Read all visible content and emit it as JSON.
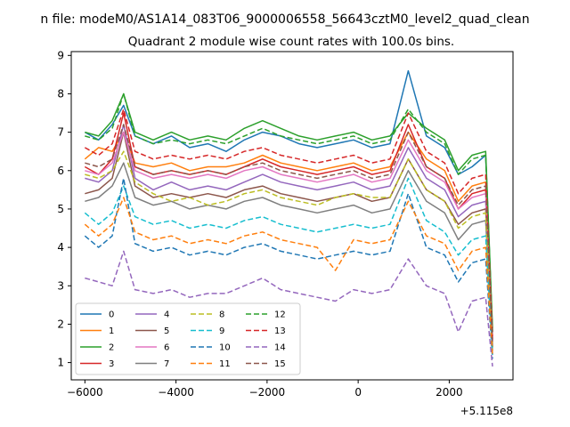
{
  "figure": {
    "suptitle": "n file: modeM0/AS1A14_083T06_9000006558_56643cztM0_level2_quad_clean",
    "offset_text": "+5.115e8"
  },
  "chart_data": {
    "type": "line",
    "title": "Quadrant 2 module wise count rates with 100.0s bins.",
    "xlabel": "",
    "ylabel": "",
    "xlim": [
      -6300,
      3400
    ],
    "ylim": [
      0.55,
      9.1
    ],
    "x_ticks": [
      -6000,
      -4000,
      -2000,
      0,
      2000
    ],
    "x_tick_labels": [
      "−6000",
      "−4000",
      "−2000",
      "0",
      "2000"
    ],
    "y_ticks": [
      1,
      2,
      3,
      4,
      5,
      6,
      7,
      8,
      9
    ],
    "y_tick_labels": [
      "1",
      "2",
      "3",
      "4",
      "5",
      "6",
      "7",
      "8",
      "9"
    ],
    "grid": false,
    "legend": {
      "placement": "lower-left",
      "columns": 4
    },
    "x": [
      -6000,
      -5700,
      -5400,
      -5150,
      -4900,
      -4500,
      -4100,
      -3700,
      -3300,
      -2900,
      -2500,
      -2100,
      -1700,
      -1300,
      -900,
      -500,
      -100,
      300,
      700,
      1100,
      1500,
      1900,
      2200,
      2500,
      2800,
      2950
    ],
    "series": [
      {
        "name": "0",
        "color": "#1f77b4",
        "dash": "",
        "values": [
          7.0,
          6.8,
          7.2,
          7.7,
          6.9,
          6.7,
          6.9,
          6.6,
          6.7,
          6.5,
          6.8,
          7.0,
          6.9,
          6.7,
          6.6,
          6.7,
          6.8,
          6.6,
          6.7,
          8.6,
          6.9,
          6.6,
          5.9,
          6.1,
          6.4,
          1.8
        ]
      },
      {
        "name": "1",
        "color": "#ff7f0e",
        "dash": "",
        "values": [
          6.3,
          6.6,
          6.5,
          7.0,
          6.2,
          6.1,
          6.2,
          6.0,
          6.1,
          6.1,
          6.2,
          6.4,
          6.2,
          6.1,
          6.0,
          6.1,
          6.2,
          6.0,
          6.1,
          7.0,
          6.3,
          6.0,
          5.2,
          5.6,
          5.7,
          1.4
        ]
      },
      {
        "name": "2",
        "color": "#2ca02c",
        "dash": "",
        "values": [
          7.0,
          6.9,
          7.3,
          8.0,
          7.0,
          6.8,
          7.0,
          6.8,
          6.9,
          6.8,
          7.1,
          7.3,
          7.1,
          6.9,
          6.8,
          6.9,
          7.0,
          6.8,
          6.9,
          7.5,
          7.1,
          6.8,
          6.0,
          6.4,
          6.5,
          1.9
        ]
      },
      {
        "name": "3",
        "color": "#d62728",
        "dash": "",
        "values": [
          6.1,
          5.9,
          6.3,
          7.5,
          6.1,
          5.9,
          6.0,
          5.9,
          6.0,
          5.9,
          6.1,
          6.3,
          6.1,
          6.0,
          5.9,
          6.0,
          6.1,
          5.9,
          6.0,
          7.2,
          6.1,
          5.8,
          5.0,
          5.4,
          5.5,
          1.7
        ]
      },
      {
        "name": "4",
        "color": "#9467bd",
        "dash": "",
        "values": [
          5.8,
          5.7,
          6.0,
          7.2,
          5.8,
          5.5,
          5.7,
          5.5,
          5.6,
          5.5,
          5.7,
          5.9,
          5.7,
          5.6,
          5.5,
          5.6,
          5.7,
          5.5,
          5.6,
          6.6,
          5.8,
          5.5,
          4.8,
          5.1,
          5.2,
          1.5
        ]
      },
      {
        "name": "5",
        "color": "#8c564b",
        "dash": "",
        "values": [
          5.4,
          5.5,
          5.8,
          7.0,
          5.6,
          5.3,
          5.4,
          5.3,
          5.4,
          5.3,
          5.5,
          5.6,
          5.4,
          5.3,
          5.2,
          5.3,
          5.4,
          5.2,
          5.3,
          6.3,
          5.5,
          5.2,
          4.6,
          4.9,
          5.0,
          1.4
        ]
      },
      {
        "name": "6",
        "color": "#e377c2",
        "dash": "",
        "values": [
          6.0,
          5.9,
          6.2,
          7.0,
          6.0,
          5.8,
          5.9,
          5.8,
          5.9,
          5.8,
          6.0,
          6.1,
          5.9,
          5.8,
          5.7,
          5.8,
          5.9,
          5.7,
          5.8,
          6.8,
          6.0,
          5.7,
          5.0,
          5.3,
          5.4,
          1.6
        ]
      },
      {
        "name": "7",
        "color": "#7f7f7f",
        "dash": "",
        "values": [
          5.2,
          5.3,
          5.6,
          6.2,
          5.3,
          5.1,
          5.2,
          5.0,
          5.1,
          5.0,
          5.2,
          5.3,
          5.1,
          5.0,
          4.9,
          5.0,
          5.1,
          4.9,
          5.0,
          6.0,
          5.2,
          4.9,
          4.2,
          4.6,
          4.7,
          1.3
        ]
      },
      {
        "name": "8",
        "color": "#bcbd22",
        "dash": "6,3",
        "values": [
          5.9,
          5.8,
          6.0,
          6.5,
          5.7,
          5.4,
          5.2,
          5.3,
          5.1,
          5.2,
          5.4,
          5.5,
          5.3,
          5.2,
          5.1,
          5.3,
          5.4,
          5.3,
          5.3,
          6.3,
          5.5,
          5.2,
          4.5,
          4.8,
          4.9,
          1.4
        ]
      },
      {
        "name": "9",
        "color": "#17becf",
        "dash": "6,3",
        "values": [
          4.9,
          4.6,
          4.9,
          5.6,
          4.8,
          4.6,
          4.7,
          4.5,
          4.6,
          4.5,
          4.7,
          4.8,
          4.6,
          4.5,
          4.4,
          4.5,
          4.6,
          4.5,
          4.6,
          5.8,
          4.7,
          4.4,
          3.8,
          4.2,
          4.3,
          1.2
        ]
      },
      {
        "name": "10",
        "color": "#1f77b4",
        "dash": "6,3",
        "values": [
          4.3,
          4.0,
          4.3,
          5.8,
          4.1,
          3.9,
          4.0,
          3.8,
          3.9,
          3.8,
          4.0,
          4.1,
          3.9,
          3.8,
          3.7,
          3.8,
          3.9,
          3.8,
          3.9,
          5.4,
          4.0,
          3.8,
          3.1,
          3.6,
          3.7,
          1.1
        ]
      },
      {
        "name": "11",
        "color": "#ff7f0e",
        "dash": "6,3",
        "values": [
          4.6,
          4.3,
          4.6,
          5.3,
          4.4,
          4.2,
          4.3,
          4.1,
          4.2,
          4.1,
          4.3,
          4.4,
          4.2,
          4.1,
          4.0,
          3.4,
          4.2,
          4.1,
          4.2,
          5.2,
          4.3,
          4.1,
          3.4,
          3.9,
          4.0,
          1.2
        ]
      },
      {
        "name": "12",
        "color": "#2ca02c",
        "dash": "6,3",
        "values": [
          6.9,
          6.8,
          7.1,
          8.0,
          6.9,
          6.7,
          6.8,
          6.7,
          6.8,
          6.7,
          6.9,
          7.1,
          6.9,
          6.8,
          6.7,
          6.8,
          6.9,
          6.7,
          6.8,
          7.6,
          7.0,
          6.7,
          5.9,
          6.3,
          6.4,
          1.8
        ]
      },
      {
        "name": "13",
        "color": "#d62728",
        "dash": "6,3",
        "values": [
          6.6,
          6.4,
          6.7,
          7.6,
          6.5,
          6.3,
          6.4,
          6.3,
          6.4,
          6.3,
          6.5,
          6.6,
          6.4,
          6.3,
          6.2,
          6.3,
          6.4,
          6.2,
          6.3,
          7.5,
          6.5,
          6.2,
          5.4,
          5.8,
          5.9,
          1.6
        ]
      },
      {
        "name": "14",
        "color": "#9467bd",
        "dash": "6,3",
        "values": [
          3.2,
          3.1,
          3.0,
          3.9,
          2.9,
          2.8,
          2.9,
          2.7,
          2.8,
          2.8,
          3.0,
          3.2,
          2.9,
          2.8,
          2.7,
          2.6,
          2.9,
          2.8,
          2.9,
          3.7,
          3.0,
          2.8,
          1.8,
          2.6,
          2.7,
          0.9
        ]
      },
      {
        "name": "15",
        "color": "#8c564b",
        "dash": "6,3",
        "values": [
          6.2,
          6.1,
          6.3,
          7.2,
          6.1,
          5.9,
          6.0,
          5.9,
          6.0,
          5.9,
          6.1,
          6.2,
          6.0,
          5.9,
          5.8,
          5.9,
          6.0,
          5.8,
          5.9,
          7.0,
          6.1,
          5.8,
          5.1,
          5.5,
          5.6,
          1.5
        ]
      }
    ]
  }
}
